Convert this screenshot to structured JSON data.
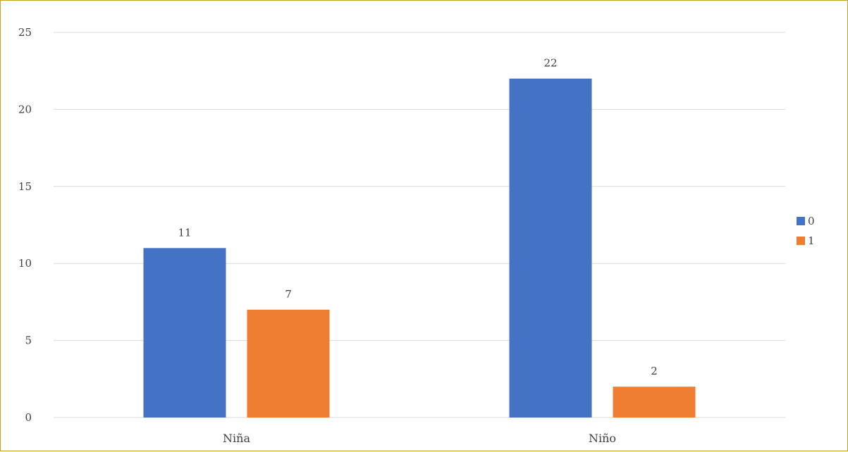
{
  "chart_data": {
    "type": "bar",
    "title": "",
    "xlabel": "",
    "ylabel": "",
    "categories": [
      "Niña",
      "Niño"
    ],
    "series": [
      {
        "name": "0",
        "values": [
          11,
          22
        ],
        "color": "#4472c4"
      },
      {
        "name": "1",
        "values": [
          7,
          2
        ],
        "color": "#ed7d31"
      }
    ],
    "ylim": [
      0,
      25
    ],
    "yticks": [
      0,
      5,
      10,
      15,
      20,
      25
    ],
    "grid": true,
    "legend_position": "right",
    "data_labels": true
  },
  "colors": {
    "frame_border": "#c9a227",
    "gridline": "#d9d9d9",
    "text": "#404040"
  }
}
